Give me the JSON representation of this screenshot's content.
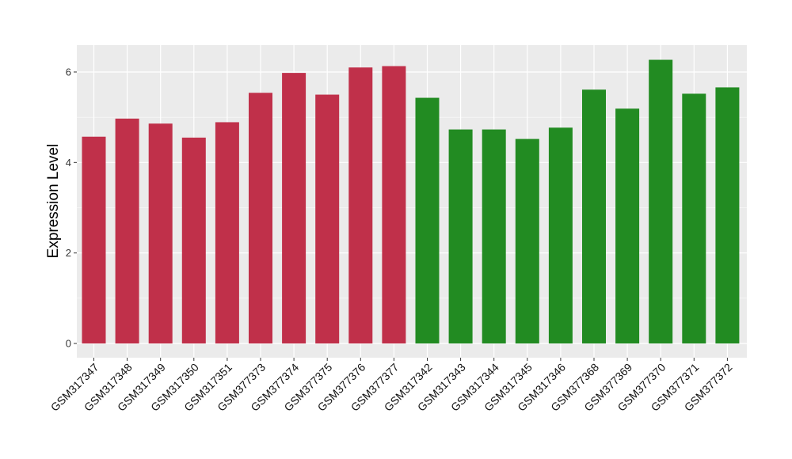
{
  "chart_data": {
    "type": "bar",
    "title": "",
    "xlabel": "",
    "ylabel": "Expression Level",
    "ylim": [
      0,
      6.6
    ],
    "y_ticks": [
      0,
      2,
      4,
      6
    ],
    "grid": true,
    "categories": [
      "GSM317347",
      "GSM317348",
      "GSM317349",
      "GSM317350",
      "GSM317351",
      "GSM377373",
      "GSM377374",
      "GSM377375",
      "GSM377376",
      "GSM377377",
      "GSM317342",
      "GSM317343",
      "GSM317344",
      "GSM317345",
      "GSM317346",
      "GSM377368",
      "GSM377369",
      "GSM377370",
      "GSM377371",
      "GSM377372"
    ],
    "values": [
      4.57,
      4.97,
      4.86,
      4.55,
      4.89,
      5.54,
      5.98,
      5.5,
      6.1,
      6.13,
      5.43,
      4.73,
      4.73,
      4.52,
      4.77,
      5.61,
      5.19,
      6.27,
      5.52,
      5.66
    ],
    "group_colors": [
      "#c0304a",
      "#c0304a",
      "#c0304a",
      "#c0304a",
      "#c0304a",
      "#c0304a",
      "#c0304a",
      "#c0304a",
      "#c0304a",
      "#c0304a",
      "#228b22",
      "#228b22",
      "#228b22",
      "#228b22",
      "#228b22",
      "#228b22",
      "#228b22",
      "#228b22",
      "#228b22",
      "#228b22"
    ],
    "panel_background": "#ebebeb",
    "grid_color": "#ffffff"
  }
}
